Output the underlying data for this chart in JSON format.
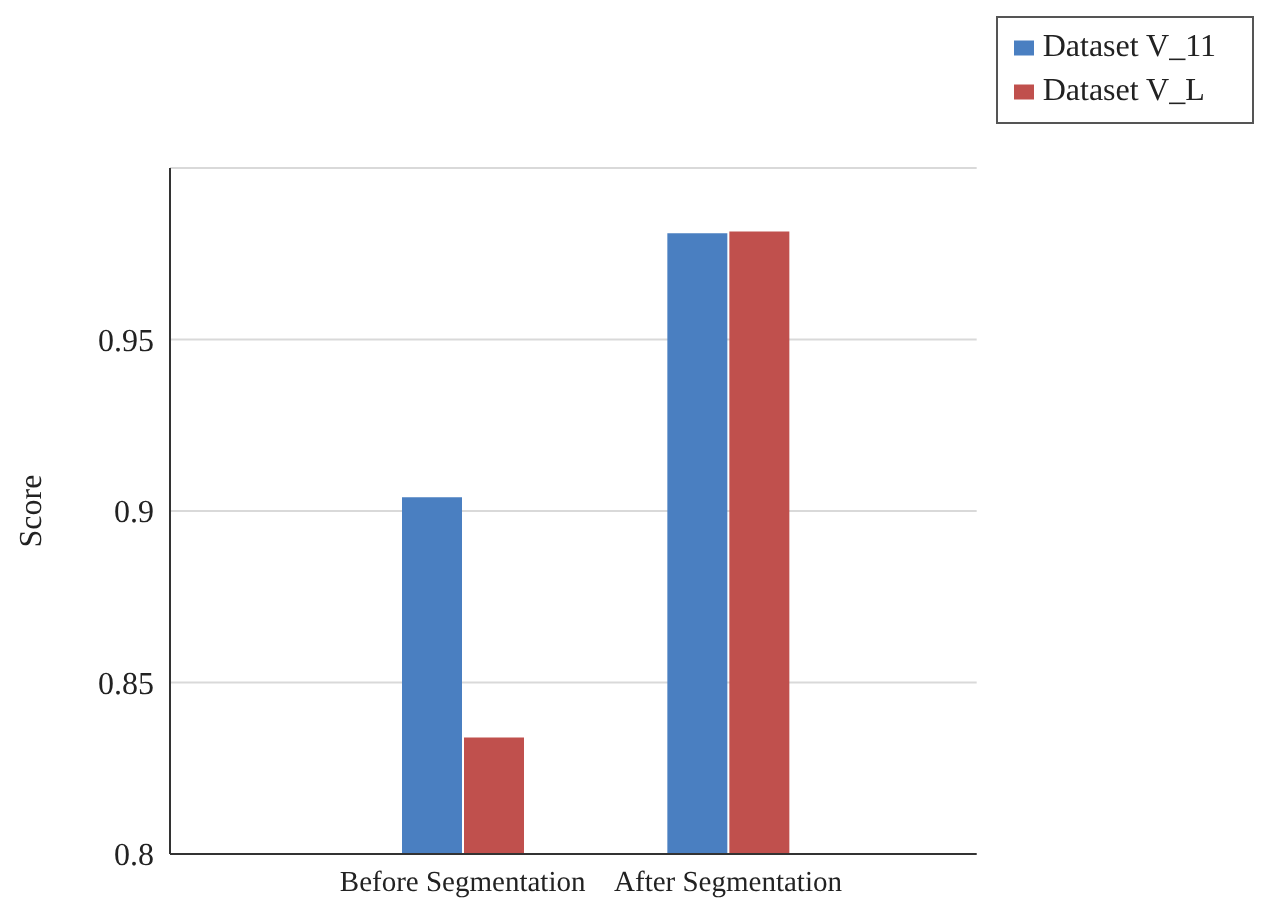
{
  "chart_data": {
    "type": "bar",
    "ylabel": "Score",
    "categories": [
      "Before Segmentation",
      "After Segmentation"
    ],
    "series": [
      {
        "name": "Dataset V_11",
        "color": "#4a7fc1",
        "values": [
          0.904,
          0.981
        ]
      },
      {
        "name": "Dataset V_L",
        "color": "#c0504d",
        "values": [
          0.834,
          0.9815
        ]
      }
    ],
    "ylim": [
      0.8,
      1.0
    ],
    "yticks": [
      0.8,
      0.85,
      0.9,
      0.95
    ],
    "grid": "y",
    "legend": "top right"
  }
}
